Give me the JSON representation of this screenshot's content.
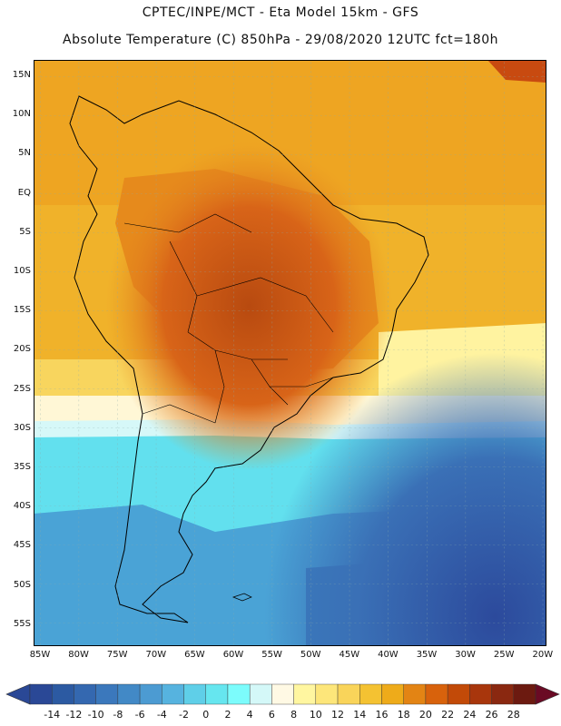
{
  "header": {
    "line1": "CPTEC/INPE/MCT -   Eta Model 15km - GFS",
    "line2": "Absolute Temperature (C) 850hPa - 29/08/2020 12UTC fct=180h"
  },
  "map": {
    "latitude_labels": [
      "15N",
      "10N",
      "5N",
      "EQ",
      "5S",
      "10S",
      "15S",
      "20S",
      "25S",
      "30S",
      "35S",
      "40S",
      "45S",
      "50S",
      "55S"
    ],
    "longitude_labels": [
      "85W",
      "80W",
      "75W",
      "70W",
      "65W",
      "60W",
      "55W",
      "50W",
      "45W",
      "40W",
      "35W",
      "30W",
      "25W",
      "20W"
    ]
  },
  "colorbar": {
    "ticks": [
      "-14",
      "-12",
      "-10",
      "-8",
      "-6",
      "-4",
      "-2",
      "0",
      "2",
      "4",
      "6",
      "8",
      "10",
      "12",
      "14",
      "16",
      "18",
      "20",
      "22",
      "24",
      "26",
      "28"
    ],
    "colors": [
      "#2a4896",
      "#2c5aa2",
      "#3468b0",
      "#3b78bc",
      "#4289c6",
      "#4c9bd2",
      "#56b3df",
      "#5fcfe8",
      "#66e6ef",
      "#7cfcfc",
      "#d4f8f8",
      "#fff9e4",
      "#fff6a0",
      "#fde67a",
      "#f9d45a",
      "#f4c232",
      "#eeab1a",
      "#e38414",
      "#d8620c",
      "#c24a08",
      "#a8360c",
      "#8a2810",
      "#6c1a10"
    ]
  }
}
